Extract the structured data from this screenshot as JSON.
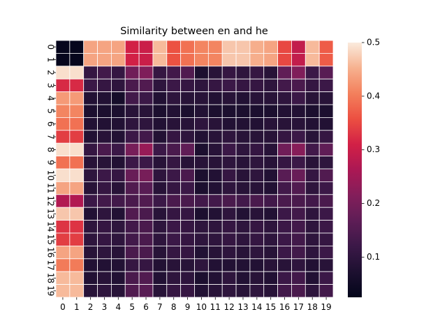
{
  "chart_data": {
    "type": "heatmap",
    "title": "Similarity between en and he",
    "x_tick_labels": [
      "0",
      "1",
      "2",
      "3",
      "4",
      "5",
      "6",
      "7",
      "8",
      "9",
      "10",
      "11",
      "12",
      "13",
      "14",
      "15",
      "16",
      "17",
      "18",
      "19"
    ],
    "y_tick_labels": [
      "0",
      "1",
      "2",
      "3",
      "4",
      "5",
      "6",
      "7",
      "8",
      "9",
      "10",
      "11",
      "12",
      "13",
      "14",
      "15",
      "16",
      "17",
      "18",
      "19"
    ],
    "colorbar": {
      "colormap": "rocket",
      "vmin": 0.025,
      "vmax": 0.5,
      "ticks": [
        "0.1",
        "0.2",
        "0.3",
        "0.4",
        "0.5"
      ],
      "tick_values": [
        0.1,
        0.2,
        0.3,
        0.4,
        0.5
      ]
    },
    "values": [
      [
        0.03,
        0.03,
        0.44,
        0.44,
        0.44,
        0.31,
        0.3,
        0.46,
        0.36,
        0.39,
        0.41,
        0.41,
        0.47,
        0.47,
        0.45,
        0.44,
        0.35,
        0.29,
        0.46,
        0.37
      ],
      [
        0.03,
        0.03,
        0.44,
        0.44,
        0.44,
        0.31,
        0.3,
        0.46,
        0.36,
        0.39,
        0.41,
        0.41,
        0.47,
        0.47,
        0.45,
        0.44,
        0.35,
        0.29,
        0.46,
        0.37
      ],
      [
        0.49,
        0.49,
        0.11,
        0.13,
        0.11,
        0.19,
        0.21,
        0.11,
        0.13,
        0.15,
        0.07,
        0.09,
        0.11,
        0.1,
        0.11,
        0.09,
        0.17,
        0.21,
        0.12,
        0.16
      ],
      [
        0.32,
        0.32,
        0.12,
        0.11,
        0.1,
        0.14,
        0.15,
        0.1,
        0.12,
        0.11,
        0.1,
        0.11,
        0.12,
        0.11,
        0.11,
        0.1,
        0.13,
        0.14,
        0.11,
        0.12
      ],
      [
        0.43,
        0.43,
        0.08,
        0.08,
        0.06,
        0.13,
        0.12,
        0.08,
        0.1,
        0.09,
        0.09,
        0.08,
        0.09,
        0.08,
        0.09,
        0.09,
        0.1,
        0.12,
        0.09,
        0.09
      ],
      [
        0.41,
        0.41,
        0.07,
        0.07,
        0.07,
        0.09,
        0.09,
        0.07,
        0.08,
        0.07,
        0.08,
        0.07,
        0.07,
        0.07,
        0.07,
        0.07,
        0.08,
        0.08,
        0.07,
        0.07
      ],
      [
        0.39,
        0.39,
        0.08,
        0.08,
        0.08,
        0.1,
        0.1,
        0.08,
        0.09,
        0.09,
        0.1,
        0.09,
        0.08,
        0.08,
        0.08,
        0.09,
        0.09,
        0.09,
        0.08,
        0.08
      ],
      [
        0.34,
        0.34,
        0.08,
        0.09,
        0.08,
        0.12,
        0.13,
        0.08,
        0.11,
        0.1,
        0.08,
        0.09,
        0.1,
        0.09,
        0.09,
        0.09,
        0.11,
        0.12,
        0.09,
        0.11
      ],
      [
        0.49,
        0.49,
        0.11,
        0.14,
        0.12,
        0.2,
        0.24,
        0.12,
        0.14,
        0.17,
        0.07,
        0.09,
        0.12,
        0.1,
        0.11,
        0.09,
        0.19,
        0.22,
        0.13,
        0.17
      ],
      [
        0.39,
        0.39,
        0.09,
        0.09,
        0.08,
        0.12,
        0.12,
        0.09,
        0.11,
        0.09,
        0.09,
        0.09,
        0.1,
        0.09,
        0.1,
        0.09,
        0.11,
        0.12,
        0.09,
        0.1
      ],
      [
        0.49,
        0.49,
        0.1,
        0.12,
        0.11,
        0.18,
        0.2,
        0.1,
        0.12,
        0.14,
        0.07,
        0.08,
        0.11,
        0.09,
        0.1,
        0.08,
        0.16,
        0.18,
        0.11,
        0.15
      ],
      [
        0.44,
        0.44,
        0.09,
        0.11,
        0.09,
        0.15,
        0.16,
        0.09,
        0.11,
        0.12,
        0.07,
        0.08,
        0.1,
        0.09,
        0.09,
        0.08,
        0.13,
        0.15,
        0.1,
        0.12
      ],
      [
        0.27,
        0.27,
        0.12,
        0.13,
        0.13,
        0.14,
        0.15,
        0.12,
        0.14,
        0.14,
        0.13,
        0.13,
        0.14,
        0.13,
        0.14,
        0.13,
        0.14,
        0.14,
        0.13,
        0.14
      ],
      [
        0.47,
        0.47,
        0.08,
        0.1,
        0.08,
        0.15,
        0.14,
        0.09,
        0.11,
        0.11,
        0.07,
        0.08,
        0.1,
        0.08,
        0.09,
        0.08,
        0.12,
        0.13,
        0.1,
        0.12
      ],
      [
        0.33,
        0.33,
        0.1,
        0.11,
        0.1,
        0.13,
        0.14,
        0.1,
        0.12,
        0.11,
        0.1,
        0.1,
        0.11,
        0.1,
        0.11,
        0.1,
        0.12,
        0.13,
        0.1,
        0.12
      ],
      [
        0.34,
        0.34,
        0.1,
        0.11,
        0.1,
        0.13,
        0.14,
        0.1,
        0.12,
        0.11,
        0.1,
        0.1,
        0.11,
        0.1,
        0.11,
        0.1,
        0.12,
        0.13,
        0.1,
        0.11
      ],
      [
        0.44,
        0.44,
        0.09,
        0.1,
        0.09,
        0.14,
        0.14,
        0.09,
        0.11,
        0.11,
        0.08,
        0.09,
        0.1,
        0.09,
        0.1,
        0.09,
        0.12,
        0.13,
        0.1,
        0.12
      ],
      [
        0.4,
        0.4,
        0.08,
        0.08,
        0.08,
        0.11,
        0.11,
        0.08,
        0.09,
        0.09,
        0.1,
        0.08,
        0.08,
        0.08,
        0.08,
        0.09,
        0.09,
        0.1,
        0.08,
        0.09
      ],
      [
        0.46,
        0.46,
        0.08,
        0.09,
        0.08,
        0.14,
        0.15,
        0.08,
        0.1,
        0.1,
        0.07,
        0.08,
        0.1,
        0.08,
        0.09,
        0.08,
        0.12,
        0.13,
        0.08,
        0.12
      ],
      [
        0.46,
        0.46,
        0.09,
        0.1,
        0.09,
        0.15,
        0.16,
        0.09,
        0.11,
        0.11,
        0.08,
        0.09,
        0.1,
        0.09,
        0.1,
        0.09,
        0.13,
        0.14,
        0.1,
        0.13
      ]
    ]
  }
}
